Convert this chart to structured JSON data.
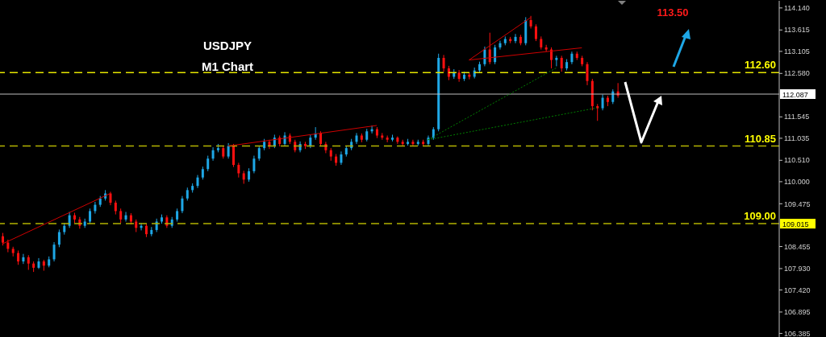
{
  "chart_data": {
    "type": "candlestick",
    "title": "USDJPY",
    "subtitle": "M1 Chart",
    "categories": [
      null,
      null,
      null,
      null,
      null,
      null,
      null,
      null,
      null,
      null,
      null,
      null,
      null,
      null,
      null,
      null,
      null,
      null,
      null,
      null,
      null,
      null,
      null,
      null,
      null,
      null,
      null,
      null,
      null,
      null,
      null,
      null,
      null,
      null,
      null,
      null,
      null,
      null,
      null,
      null,
      null,
      null,
      null,
      null,
      null,
      null,
      null,
      null,
      null,
      null,
      null,
      null,
      null,
      null,
      null,
      null,
      null,
      null,
      null,
      null,
      null,
      null,
      null,
      null,
      null,
      null,
      null,
      null,
      null,
      null,
      null,
      null,
      null,
      null,
      null,
      null,
      null,
      null,
      null,
      null,
      null,
      null,
      null,
      null,
      null,
      null,
      null,
      null,
      null,
      null,
      null,
      null,
      null,
      null,
      null,
      null,
      null,
      null,
      null,
      null,
      null,
      null,
      null,
      null,
      null,
      null,
      null,
      null,
      null,
      null,
      null,
      null,
      null,
      null,
      null,
      null,
      null,
      null,
      null,
      null,
      null,
      null,
      null,
      null,
      null,
      null,
      null,
      null,
      null,
      null,
      null,
      null,
      null,
      null,
      null,
      null,
      null,
      null,
      null,
      null,
      null,
      null,
      null,
      null,
      null,
      null,
      null,
      null,
      null,
      null,
      null,
      null
    ],
    "colors": [
      "#ff1010",
      "#ff1010",
      "#ff1010",
      "#ff1010",
      "#1ea7e6",
      "#ff1010",
      "#ff1010",
      "#1ea7e6",
      "#ff1010",
      "#1ea7e6",
      "#1ea7e6",
      "#1ea7e6",
      "#1ea7e6",
      "#1ea7e6",
      "#ff1010",
      "#ff1010",
      "#1ea7e6",
      "#1ea7e6",
      "#1ea7e6",
      "#1ea7e6",
      "#1ea7e6",
      "#ff1010",
      "#ff1010",
      "#ff1010",
      "#1ea7e6",
      "#ff1010",
      "#ff1010",
      "#1ea7e6",
      "#ff1010",
      "#1ea7e6",
      "#1ea7e6",
      "#1ea7e6",
      "#ff1010",
      "#1ea7e6",
      "#1ea7e6",
      "#1ea7e6",
      "#1ea7e6",
      "#1ea7e6",
      "#1ea7e6",
      "#1ea7e6",
      "#1ea7e6",
      "#1ea7e6",
      "#1ea7e6",
      "#ff1010",
      "#1ea7e6",
      "#ff1010",
      "#ff1010",
      "#ff1010",
      "#1ea7e6",
      "#1ea7e6",
      "#1ea7e6",
      "#1ea7e6",
      "#ff1010",
      "#1ea7e6",
      "#ff1010",
      "#1ea7e6",
      "#ff1010",
      "#ff1010",
      "#1ea7e6",
      "#ff1010",
      "#1ea7e6",
      "#1ea7e6",
      "#ff1010",
      "#ff1010",
      "#ff1010",
      "#ff1010",
      "#1ea7e6",
      "#1ea7e6",
      "#1ea7e6",
      "#1ea7e6",
      "#ff1010",
      "#1ea7e6",
      "#1ea7e6",
      "#ff1010",
      "#ff1010",
      "#ff1010",
      "#1ea7e6",
      "#ff1010",
      "#ff1010",
      "#1ea7e6",
      "#ff1010",
      "#1ea7e6",
      "#ff1010",
      "#1ea7e6",
      "#1ea7e6",
      "#1ea7e6",
      "#ff1010",
      "#ff1010",
      "#1ea7e6",
      "#ff1010",
      "#1ea7e6",
      "#ff1010",
      "#1ea7e6",
      "#1ea7e6",
      "#1ea7e6",
      "#ff1010",
      "#1ea7e6",
      "#1ea7e6",
      "#1ea7e6",
      "#ff1010",
      "#1ea7e6",
      "#ff1010",
      "#1ea7e6",
      "#ff1010",
      "#ff1010",
      "#ff1010",
      "#ff1010",
      "#ff1010",
      "#1ea7e6",
      "#ff1010",
      "#1ea7e6",
      "#1ea7e6",
      "#ff1010",
      "#ff1010",
      "#ff1010",
      "#ff1010",
      "#ff1010",
      "#1ea7e6",
      "#ff1010",
      "#1ea7e6",
      "#ff1010",
      null,
      null,
      null,
      null,
      null,
      null,
      null,
      null,
      null,
      null,
      null,
      null,
      null,
      null,
      null,
      null,
      null,
      null,
      null,
      null,
      null,
      null,
      null,
      null,
      null,
      null,
      null,
      null,
      null,
      null,
      null
    ],
    "ohlc": [
      [
        108.7,
        108.78,
        108.48,
        108.55
      ],
      [
        108.55,
        108.62,
        108.32,
        108.4
      ],
      [
        108.4,
        108.45,
        108.22,
        108.3
      ],
      [
        108.3,
        108.36,
        108.02,
        108.1
      ],
      [
        108.1,
        108.28,
        108.04,
        108.2
      ],
      [
        108.2,
        108.25,
        107.9,
        108.05
      ],
      [
        108.05,
        108.1,
        107.85,
        107.95
      ],
      [
        107.95,
        108.18,
        107.92,
        108.1
      ],
      [
        108.1,
        108.14,
        107.88,
        108.0
      ],
      [
        108.0,
        108.22,
        107.96,
        108.15
      ],
      [
        108.15,
        108.56,
        108.1,
        108.5
      ],
      [
        108.5,
        108.86,
        108.44,
        108.8
      ],
      [
        108.8,
        109.02,
        108.74,
        108.95
      ],
      [
        108.95,
        109.28,
        108.9,
        109.2
      ],
      [
        109.2,
        109.26,
        109.02,
        109.1
      ],
      [
        109.1,
        109.16,
        108.88,
        108.95
      ],
      [
        108.95,
        109.12,
        108.9,
        109.05
      ],
      [
        109.05,
        109.36,
        109.0,
        109.3
      ],
      [
        109.3,
        109.52,
        109.24,
        109.45
      ],
      [
        109.45,
        109.66,
        109.4,
        109.6
      ],
      [
        109.6,
        109.8,
        109.55,
        109.72
      ],
      [
        109.72,
        109.76,
        109.44,
        109.5
      ],
      [
        109.5,
        109.55,
        109.22,
        109.3
      ],
      [
        109.3,
        109.36,
        109.02,
        109.1
      ],
      [
        109.1,
        109.28,
        109.05,
        109.2
      ],
      [
        109.2,
        109.25,
        108.98,
        109.05
      ],
      [
        109.05,
        109.1,
        108.8,
        108.9
      ],
      [
        108.9,
        109.02,
        108.84,
        108.95
      ],
      [
        108.95,
        109.0,
        108.68,
        108.75
      ],
      [
        108.75,
        108.92,
        108.7,
        108.85
      ],
      [
        108.85,
        109.12,
        108.8,
        109.05
      ],
      [
        109.05,
        109.22,
        109.0,
        109.15
      ],
      [
        109.15,
        109.2,
        108.9,
        108.95
      ],
      [
        108.95,
        109.16,
        108.9,
        109.1
      ],
      [
        109.1,
        109.36,
        109.05,
        109.3
      ],
      [
        109.3,
        109.66,
        109.25,
        109.6
      ],
      [
        109.6,
        109.86,
        109.55,
        109.8
      ],
      [
        109.8,
        109.96,
        109.74,
        109.9
      ],
      [
        109.9,
        110.16,
        109.85,
        110.1
      ],
      [
        110.1,
        110.36,
        110.05,
        110.3
      ],
      [
        110.3,
        110.62,
        110.25,
        110.55
      ],
      [
        110.55,
        110.82,
        110.5,
        110.75
      ],
      [
        110.75,
        110.9,
        110.7,
        110.8
      ],
      [
        110.8,
        110.86,
        110.55,
        110.6
      ],
      [
        110.6,
        110.92,
        110.55,
        110.85
      ],
      [
        110.85,
        110.9,
        110.35,
        110.4
      ],
      [
        110.4,
        110.45,
        110.1,
        110.2
      ],
      [
        110.2,
        110.26,
        109.95,
        110.05
      ],
      [
        110.05,
        110.32,
        110.0,
        110.25
      ],
      [
        110.25,
        110.62,
        110.2,
        110.55
      ],
      [
        110.55,
        110.86,
        110.5,
        110.8
      ],
      [
        110.8,
        111.02,
        110.75,
        110.95
      ],
      [
        110.95,
        111.0,
        110.78,
        110.85
      ],
      [
        110.85,
        111.12,
        110.8,
        111.05
      ],
      [
        111.05,
        111.1,
        110.84,
        110.9
      ],
      [
        110.9,
        111.18,
        110.85,
        111.1
      ],
      [
        111.1,
        111.15,
        110.9,
        110.95
      ],
      [
        110.95,
        111.0,
        110.7,
        110.75
      ],
      [
        110.75,
        110.96,
        110.7,
        110.9
      ],
      [
        110.9,
        110.95,
        110.78,
        110.85
      ],
      [
        110.85,
        111.12,
        110.8,
        111.05
      ],
      [
        111.05,
        111.3,
        111.0,
        111.15
      ],
      [
        111.15,
        111.2,
        110.84,
        110.9
      ],
      [
        110.9,
        110.95,
        110.68,
        110.75
      ],
      [
        110.75,
        110.8,
        110.5,
        110.6
      ],
      [
        110.6,
        110.66,
        110.38,
        110.45
      ],
      [
        110.45,
        110.72,
        110.4,
        110.65
      ],
      [
        110.65,
        110.86,
        110.6,
        110.8
      ],
      [
        110.8,
        111.02,
        110.75,
        110.95
      ],
      [
        110.95,
        111.16,
        110.9,
        111.1
      ],
      [
        111.1,
        111.15,
        110.94,
        111.0
      ],
      [
        111.0,
        111.26,
        110.96,
        111.2
      ],
      [
        111.2,
        111.34,
        111.15,
        111.25
      ],
      [
        111.25,
        111.3,
        111.04,
        111.1
      ],
      [
        111.1,
        111.16,
        111.0,
        111.05
      ],
      [
        111.05,
        111.1,
        110.94,
        111.0
      ],
      [
        111.0,
        111.12,
        110.96,
        111.05
      ],
      [
        111.05,
        111.08,
        110.9,
        110.95
      ],
      [
        110.95,
        111.0,
        110.84,
        110.9
      ],
      [
        110.9,
        111.02,
        110.86,
        110.95
      ],
      [
        110.95,
        111.0,
        110.85,
        110.9
      ],
      [
        110.9,
        111.0,
        110.86,
        110.95
      ],
      [
        110.95,
        111.0,
        110.85,
        110.9
      ],
      [
        110.9,
        111.1,
        110.86,
        111.05
      ],
      [
        111.05,
        111.3,
        111.0,
        111.25
      ],
      [
        111.25,
        113.05,
        111.2,
        112.95
      ],
      [
        112.95,
        113.02,
        112.62,
        112.7
      ],
      [
        112.7,
        112.76,
        112.42,
        112.5
      ],
      [
        112.5,
        112.68,
        112.45,
        112.6
      ],
      [
        112.6,
        112.66,
        112.38,
        112.45
      ],
      [
        112.45,
        112.62,
        112.4,
        112.55
      ],
      [
        112.55,
        112.6,
        112.44,
        112.5
      ],
      [
        112.5,
        112.72,
        112.46,
        112.65
      ],
      [
        112.65,
        112.86,
        112.6,
        112.8
      ],
      [
        112.8,
        113.22,
        112.75,
        113.15
      ],
      [
        113.15,
        113.55,
        112.8,
        112.85
      ],
      [
        112.85,
        113.26,
        112.8,
        113.2
      ],
      [
        113.2,
        113.36,
        113.15,
        113.3
      ],
      [
        113.3,
        113.46,
        113.25,
        113.4
      ],
      [
        113.4,
        113.45,
        113.3,
        113.35
      ],
      [
        113.35,
        113.52,
        113.3,
        113.45
      ],
      [
        113.45,
        113.5,
        113.25,
        113.3
      ],
      [
        113.3,
        113.92,
        113.25,
        113.85
      ],
      [
        113.85,
        113.95,
        113.65,
        113.7
      ],
      [
        113.7,
        113.75,
        113.35,
        113.4
      ],
      [
        113.4,
        113.46,
        113.15,
        113.2
      ],
      [
        113.2,
        113.26,
        113.1,
        113.15
      ],
      [
        113.15,
        113.2,
        112.7,
        112.9
      ],
      [
        112.9,
        113.0,
        112.75,
        112.95
      ],
      [
        112.95,
        113.0,
        112.62,
        112.7
      ],
      [
        112.7,
        112.92,
        112.65,
        112.85
      ],
      [
        112.85,
        113.1,
        112.8,
        113.05
      ],
      [
        113.05,
        113.1,
        112.9,
        112.95
      ],
      [
        112.95,
        113.0,
        112.75,
        112.8
      ],
      [
        112.8,
        112.85,
        112.3,
        112.4
      ],
      [
        112.4,
        112.45,
        111.7,
        111.8
      ],
      [
        111.8,
        111.85,
        111.45,
        111.75
      ],
      [
        111.75,
        112.08,
        111.7,
        112.0
      ],
      [
        112.0,
        112.05,
        111.8,
        111.9
      ],
      [
        111.9,
        112.2,
        111.85,
        112.15
      ],
      [
        112.15,
        112.35,
        112.0,
        112.05
      ],
      null,
      null,
      null,
      null,
      null,
      null,
      null,
      null,
      null,
      null,
      null,
      null,
      null,
      null,
      null,
      null,
      null,
      null,
      null,
      null,
      null,
      null,
      null,
      null,
      null,
      null,
      null,
      null,
      null,
      null,
      null
    ],
    "series": [
      {
        "type": "line",
        "color": "#d00000",
        "line_style": "solid",
        "values": [
          108.52,
          null,
          null,
          null,
          null,
          null,
          null,
          null,
          null,
          null,
          null,
          null,
          null,
          null,
          null,
          null,
          null,
          null,
          null,
          null,
          null,
          109.72,
          null,
          null,
          null,
          null,
          null,
          null,
          null,
          null,
          null,
          null,
          null,
          null,
          null,
          null,
          null,
          null,
          null,
          null,
          null,
          null,
          null,
          null,
          null,
          null,
          null,
          null,
          null,
          null,
          null,
          null,
          null,
          null,
          null,
          null,
          null,
          null,
          null,
          null,
          null,
          null,
          null,
          null,
          null,
          null,
          null,
          null,
          null,
          null,
          null,
          null,
          null,
          null,
          null,
          null,
          null,
          null,
          null,
          null,
          null,
          null,
          null,
          null,
          null,
          null,
          null,
          null,
          null,
          null,
          null,
          null,
          null,
          null,
          null,
          null,
          null,
          null,
          null,
          null,
          null,
          null,
          null,
          null,
          null,
          null,
          null,
          null,
          null,
          null,
          null,
          null,
          null,
          null,
          null,
          null,
          null,
          null,
          null,
          null,
          null,
          null,
          null,
          null,
          null,
          null,
          null,
          null,
          null,
          null,
          null,
          null,
          null,
          null,
          null,
          null,
          null,
          null,
          null,
          null,
          null,
          null,
          null,
          null,
          null,
          null,
          null,
          null,
          null,
          null,
          null,
          null
        ]
      },
      {
        "type": "line",
        "color": "#d00000",
        "line_style": "solid",
        "values": [
          null,
          null,
          null,
          null,
          null,
          null,
          null,
          null,
          null,
          null,
          null,
          null,
          null,
          null,
          null,
          null,
          null,
          null,
          null,
          null,
          null,
          null,
          null,
          null,
          null,
          null,
          null,
          null,
          null,
          null,
          null,
          null,
          null,
          null,
          null,
          null,
          null,
          null,
          null,
          null,
          null,
          null,
          null,
          null,
          110.85,
          null,
          null,
          null,
          null,
          null,
          null,
          null,
          null,
          null,
          null,
          null,
          null,
          null,
          null,
          null,
          null,
          null,
          null,
          null,
          null,
          null,
          null,
          null,
          null,
          null,
          null,
          null,
          null,
          111.34,
          null,
          null,
          null,
          null,
          null,
          null,
          null,
          null,
          null,
          null,
          null,
          null,
          null,
          null,
          null,
          null,
          null,
          null,
          null,
          null,
          null,
          null,
          null,
          null,
          null,
          null,
          null,
          null,
          null,
          null,
          null,
          null,
          null,
          null,
          null,
          null,
          null,
          null,
          null,
          null,
          null,
          null,
          null,
          null,
          null,
          null,
          null,
          null,
          null,
          null,
          null,
          null,
          null,
          null,
          null,
          null,
          null,
          null,
          null,
          null,
          null,
          null,
          null,
          null,
          null,
          null,
          null,
          null,
          null,
          null,
          null,
          null,
          null,
          null,
          null,
          null,
          null,
          null
        ]
      },
      {
        "type": "line",
        "color": "#d00000",
        "line_style": "solid",
        "values": [
          null,
          null,
          null,
          null,
          null,
          null,
          null,
          null,
          null,
          null,
          null,
          null,
          null,
          null,
          null,
          null,
          null,
          null,
          null,
          null,
          null,
          null,
          null,
          null,
          null,
          null,
          null,
          null,
          null,
          null,
          null,
          null,
          null,
          null,
          null,
          null,
          null,
          null,
          null,
          null,
          null,
          null,
          null,
          null,
          null,
          null,
          null,
          null,
          null,
          null,
          null,
          null,
          null,
          null,
          null,
          null,
          null,
          null,
          null,
          null,
          null,
          null,
          null,
          null,
          null,
          null,
          null,
          null,
          null,
          null,
          null,
          null,
          null,
          null,
          null,
          null,
          null,
          null,
          null,
          null,
          null,
          null,
          null,
          null,
          null,
          null,
          null,
          null,
          null,
          null,
          null,
          112.9,
          null,
          null,
          null,
          null,
          null,
          null,
          null,
          null,
          null,
          null,
          null,
          113.91,
          null,
          null,
          null,
          null,
          null,
          null,
          null,
          null,
          null,
          null,
          null,
          null,
          null,
          null,
          null,
          null,
          null,
          null,
          null,
          null,
          null,
          null,
          null,
          null,
          null,
          null,
          null,
          null,
          null,
          null,
          null,
          null,
          null,
          null,
          null,
          null,
          null,
          null,
          null,
          null,
          null,
          null,
          null,
          null,
          null,
          null,
          null,
          null
        ]
      },
      {
        "type": "line",
        "color": "#d00000",
        "line_style": "solid",
        "values": [
          null,
          null,
          null,
          null,
          null,
          null,
          null,
          null,
          null,
          null,
          null,
          null,
          null,
          null,
          null,
          null,
          null,
          null,
          null,
          null,
          null,
          null,
          null,
          null,
          null,
          null,
          null,
          null,
          null,
          null,
          null,
          null,
          null,
          null,
          null,
          null,
          null,
          null,
          null,
          null,
          null,
          null,
          null,
          null,
          null,
          null,
          null,
          null,
          null,
          null,
          null,
          null,
          null,
          null,
          null,
          null,
          null,
          null,
          null,
          null,
          null,
          null,
          null,
          null,
          null,
          null,
          null,
          null,
          null,
          null,
          null,
          null,
          null,
          null,
          null,
          null,
          null,
          null,
          null,
          null,
          null,
          null,
          null,
          null,
          null,
          null,
          null,
          null,
          null,
          null,
          null,
          112.9,
          null,
          null,
          null,
          null,
          null,
          null,
          null,
          null,
          null,
          null,
          null,
          null,
          null,
          null,
          null,
          null,
          null,
          null,
          null,
          null,
          null,
          113.19,
          null,
          null,
          null,
          null,
          null,
          null,
          null,
          null,
          null,
          null,
          null,
          null,
          null,
          null,
          null,
          null,
          null,
          null,
          null,
          null,
          null,
          null,
          null,
          null,
          null,
          null,
          null,
          null,
          null,
          null,
          null,
          null,
          null,
          null,
          null,
          null,
          null,
          null
        ]
      },
      {
        "type": "line",
        "color": "#008000",
        "line_style": "dotted",
        "values": [
          null,
          null,
          null,
          null,
          null,
          null,
          null,
          null,
          null,
          null,
          null,
          null,
          null,
          null,
          null,
          null,
          null,
          null,
          null,
          null,
          null,
          null,
          null,
          null,
          null,
          null,
          null,
          null,
          null,
          null,
          null,
          null,
          null,
          null,
          null,
          null,
          null,
          null,
          null,
          null,
          null,
          null,
          null,
          null,
          null,
          null,
          null,
          null,
          null,
          null,
          null,
          null,
          null,
          null,
          null,
          null,
          null,
          null,
          null,
          null,
          null,
          null,
          null,
          null,
          null,
          null,
          null,
          null,
          null,
          null,
          null,
          null,
          null,
          null,
          null,
          null,
          null,
          null,
          null,
          null,
          null,
          null,
          null,
          111.0,
          null,
          null,
          null,
          null,
          null,
          null,
          null,
          null,
          null,
          null,
          null,
          null,
          null,
          null,
          null,
          null,
          null,
          null,
          null,
          null,
          null,
          null,
          null,
          null,
          112.71,
          null,
          null,
          null,
          null,
          null,
          null,
          null,
          null,
          null,
          null,
          null,
          null,
          null,
          null,
          null,
          null,
          null,
          null,
          null,
          null,
          null,
          null,
          null,
          null,
          null,
          null,
          null,
          null,
          null,
          null,
          null,
          null,
          null,
          null,
          null,
          null,
          null,
          null,
          null,
          null,
          null,
          null,
          null
        ]
      },
      {
        "type": "line",
        "color": "#008000",
        "line_style": "dotted",
        "values": [
          null,
          null,
          null,
          null,
          null,
          null,
          null,
          null,
          null,
          null,
          null,
          null,
          null,
          null,
          null,
          null,
          null,
          null,
          null,
          null,
          null,
          null,
          null,
          null,
          null,
          null,
          null,
          null,
          null,
          null,
          null,
          null,
          null,
          null,
          null,
          null,
          null,
          null,
          null,
          null,
          null,
          null,
          null,
          null,
          null,
          null,
          null,
          null,
          null,
          null,
          null,
          null,
          null,
          null,
          null,
          null,
          null,
          null,
          null,
          null,
          null,
          null,
          null,
          null,
          null,
          null,
          null,
          null,
          null,
          null,
          null,
          null,
          null,
          null,
          null,
          null,
          null,
          null,
          null,
          null,
          null,
          null,
          null,
          111.0,
          null,
          null,
          null,
          null,
          null,
          null,
          null,
          null,
          null,
          null,
          null,
          null,
          null,
          null,
          null,
          null,
          null,
          null,
          null,
          null,
          null,
          null,
          null,
          null,
          null,
          null,
          null,
          null,
          null,
          null,
          null,
          null,
          111.76,
          null,
          null,
          null,
          null,
          null,
          null,
          null,
          null,
          null,
          null,
          null,
          null,
          null,
          null,
          null,
          null,
          null,
          null,
          null,
          null,
          null,
          null,
          null,
          null,
          null,
          null,
          null,
          null,
          null,
          null,
          null,
          null,
          null,
          null,
          null
        ]
      }
    ],
    "marker": "none",
    "ylim": [
      106.3,
      114.31
    ],
    "yticks": [
      {
        "value": 114.14,
        "label": "114.140"
      },
      113.615,
      113.105,
      {
        "value": 112.58,
        "label": "112.580"
      },
      111.545,
      111.035,
      {
        "value": 110.51,
        "label": "110.510"
      },
      {
        "value": 110,
        "label": "110.000"
      },
      109.475,
      108.455,
      {
        "value": 107.93,
        "label": "107.930"
      },
      {
        "value": 107.42,
        "label": "107.420"
      },
      106.895,
      106.385
    ],
    "ref_lines": [
      {
        "axis": "y",
        "value": 112.6,
        "label": "112.60",
        "color": "#e6e600",
        "line_style": "dashed"
      },
      {
        "axis": "y",
        "value": 112.087,
        "label": "112.087",
        "color": "#c0c0c0",
        "line_style": "solid"
      },
      {
        "axis": "y",
        "value": 110.85,
        "label": "110.85",
        "color": "#b3b300",
        "line_style": "dashed"
      },
      {
        "axis": "y",
        "value": 109.0,
        "label": "109.00",
        "color": "#b3b300",
        "line_style": "dashed"
      }
    ],
    "annotations": [
      "113.50",
      "109.015"
    ],
    "tick_labels": "y",
    "grid": false,
    "legend": false
  }
}
